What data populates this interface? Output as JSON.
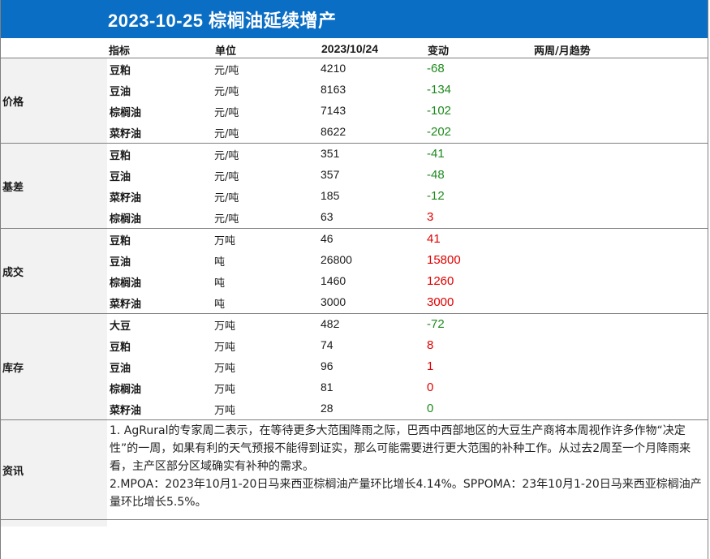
{
  "title": "2023-10-25  棕榈油延续增产",
  "headers": {
    "indicator": "指标",
    "unit": "单位",
    "date": "2023/10/24",
    "change": "变动",
    "trend": "两周/月趋势"
  },
  "colors": {
    "title_bg": "#0b6ec5",
    "negative": "#1e8a1e",
    "positive": "#e00000",
    "label_bg": "#f2f2f2"
  },
  "groups": [
    {
      "label": "价格",
      "rows": [
        {
          "name": "豆粕",
          "unit": "元/吨",
          "value": "4210",
          "change": "-68",
          "sign": "neg"
        },
        {
          "name": "豆油",
          "unit": "元/吨",
          "value": "8163",
          "change": "-134",
          "sign": "neg"
        },
        {
          "name": "棕榈油",
          "unit": "元/吨",
          "value": "7143",
          "change": "-102",
          "sign": "neg"
        },
        {
          "name": "菜籽油",
          "unit": "元/吨",
          "value": "8622",
          "change": "-202",
          "sign": "neg"
        }
      ]
    },
    {
      "label": "基差",
      "rows": [
        {
          "name": "豆粕",
          "unit": "元/吨",
          "value": "351",
          "change": "-41",
          "sign": "neg"
        },
        {
          "name": "豆油",
          "unit": "元/吨",
          "value": "357",
          "change": "-48",
          "sign": "neg"
        },
        {
          "name": "菜籽油",
          "unit": "元/吨",
          "value": "185",
          "change": "-12",
          "sign": "neg"
        },
        {
          "name": "棕榈油",
          "unit": "元/吨",
          "value": "63",
          "change": "3",
          "sign": "pos"
        }
      ]
    },
    {
      "label": "成交",
      "rows": [
        {
          "name": "豆粕",
          "unit": "万吨",
          "value": "46",
          "change": "41",
          "sign": "pos"
        },
        {
          "name": "豆油",
          "unit": "吨",
          "value": "26800",
          "change": "15800",
          "sign": "pos"
        },
        {
          "name": "棕榈油",
          "unit": "吨",
          "value": "1460",
          "change": "1260",
          "sign": "pos"
        },
        {
          "name": "菜籽油",
          "unit": "吨",
          "value": "3000",
          "change": "3000",
          "sign": "pos"
        }
      ]
    },
    {
      "label": "库存",
      "rows": [
        {
          "name": "大豆",
          "unit": "万吨",
          "value": "482",
          "change": "-72",
          "sign": "neg"
        },
        {
          "name": "豆粕",
          "unit": "万吨",
          "value": "74",
          "change": "8",
          "sign": "pos"
        },
        {
          "name": "豆油",
          "unit": "万吨",
          "value": "96",
          "change": "1",
          "sign": "pos"
        },
        {
          "name": "棕榈油",
          "unit": "万吨",
          "value": "81",
          "change": "0",
          "sign": "pos"
        },
        {
          "name": "菜籽油",
          "unit": "万吨",
          "value": "28",
          "change": "0",
          "sign": "neg"
        }
      ]
    }
  ],
  "news": {
    "label": "资讯",
    "paragraphs": [
      "1. AgRural的专家周二表示，在等待更多大范围降雨之际，巴西中西部地区的大豆生产商将本周视作许多作物“决定性”的一周，如果有利的天气预报不能得到证实，那么可能需要进行更大范围的补种工作。从过去2周至一个月降雨来看，主产区部分区域确实有补种的需求。",
      "2.MPOA：2023年10月1-20日马来西亚棕榈油产量环比增长4.14%。SPPOMA：23年10月1-20日马来西亚棕榈油产量环比增长5.5%。"
    ]
  }
}
